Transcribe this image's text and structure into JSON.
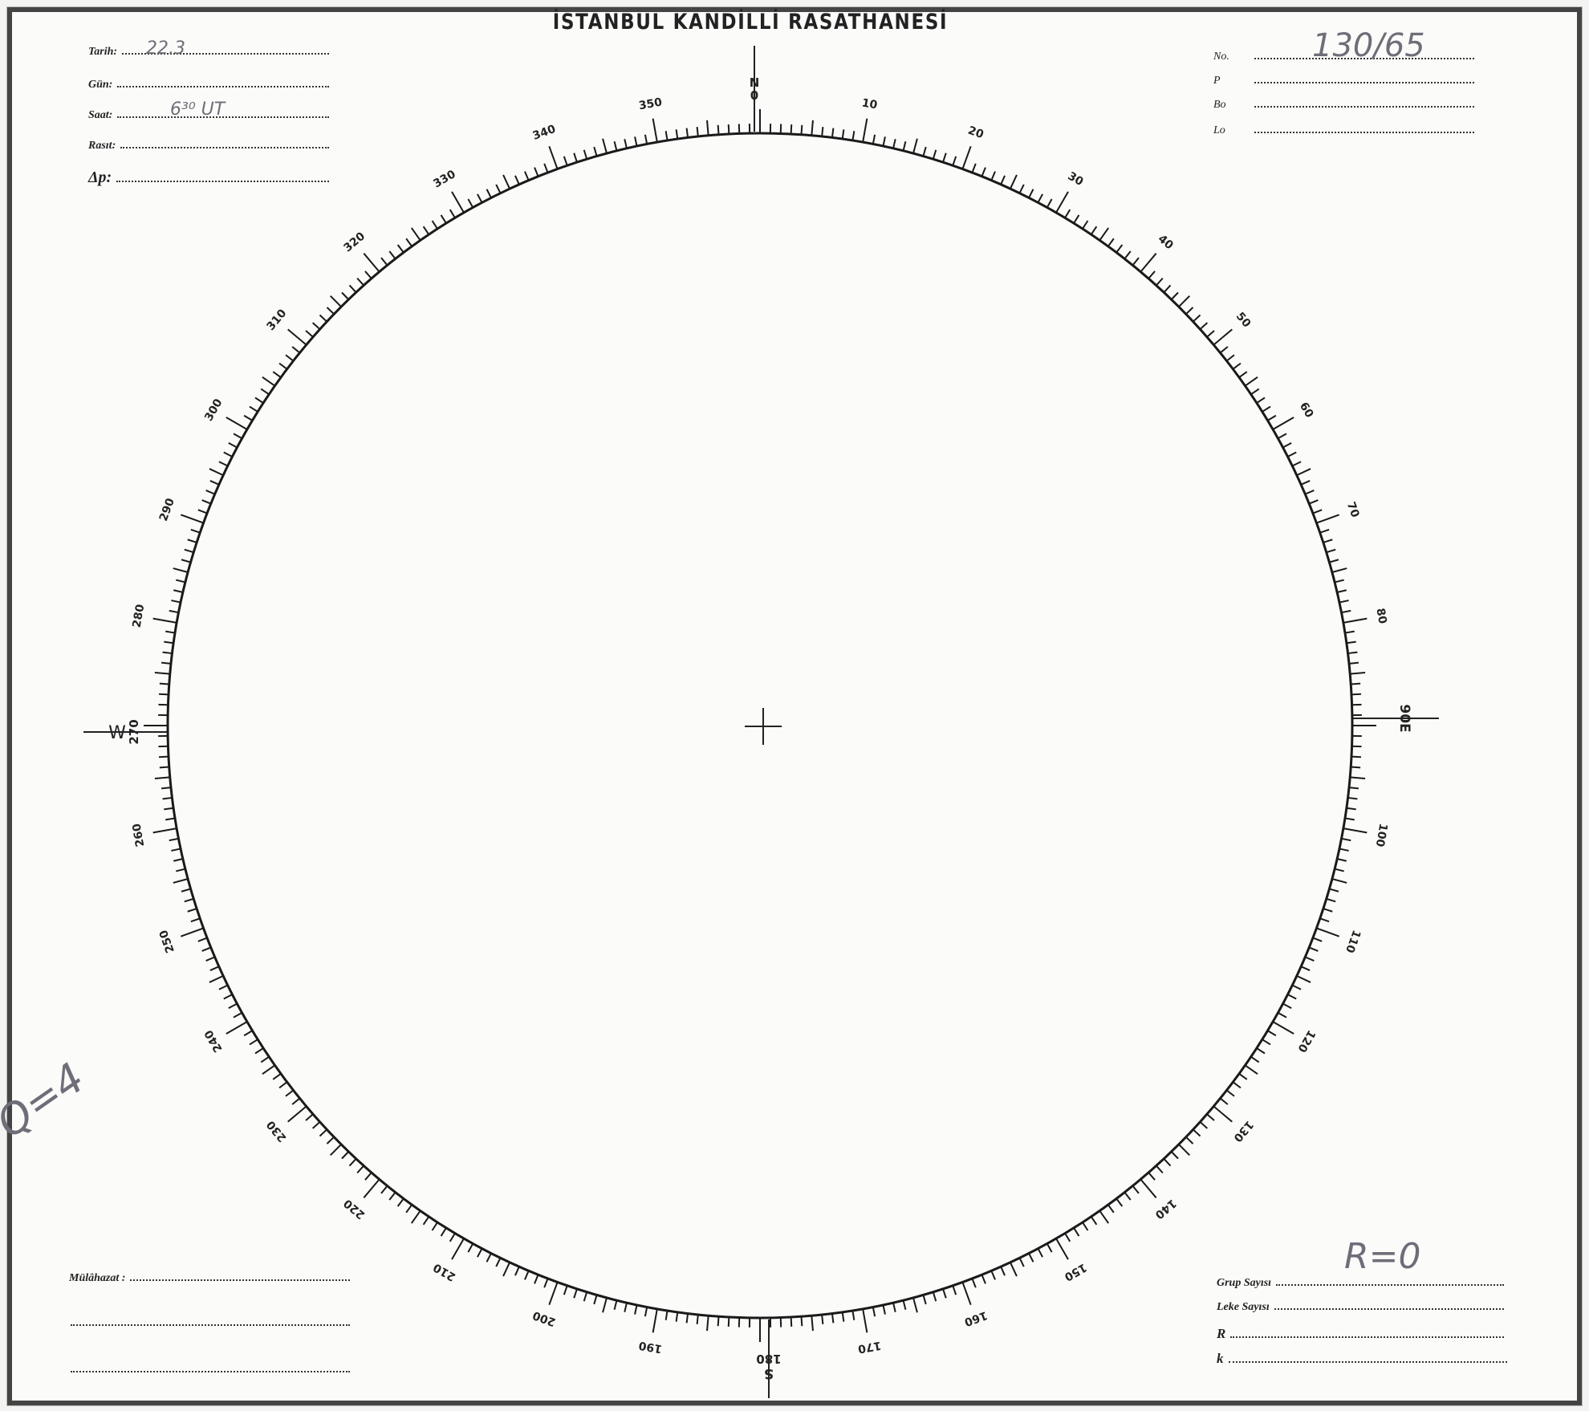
{
  "header": {
    "title": "İSTANBUL KANDİLLİ RASATHANESİ"
  },
  "left_fields": [
    {
      "label": "Tarih:",
      "value": "22.3"
    },
    {
      "label": "Gün:",
      "value": ""
    },
    {
      "label": "Saat:",
      "value": "6³⁰ UT"
    },
    {
      "label": "Rasıt:",
      "value": ""
    },
    {
      "label": "Δp:",
      "value": ""
    }
  ],
  "right_fields": [
    {
      "label": "No.",
      "value": "130/65"
    },
    {
      "label": "P",
      "value": ""
    },
    {
      "label": "Bo",
      "value": ""
    },
    {
      "label": "Lo",
      "value": ""
    }
  ],
  "remarks": {
    "label": "Mülâhazat :"
  },
  "bottom_fields": [
    {
      "label": "Grup Sayısı"
    },
    {
      "label": "Leke Sayısı"
    },
    {
      "label": "R"
    },
    {
      "label": "k"
    }
  ],
  "cardinals": {
    "north": "N",
    "north_zero": "0",
    "east": "90E",
    "south_deg": "180",
    "south": "S",
    "west": "W",
    "west_deg": "270"
  },
  "dial_labels": [
    "10",
    "20",
    "30",
    "40",
    "50",
    "60",
    "70",
    "80",
    "100",
    "110",
    "120",
    "130",
    "140",
    "150",
    "160",
    "170",
    "190",
    "200",
    "210",
    "220",
    "230",
    "240",
    "250",
    "260",
    "280",
    "290",
    "300",
    "310",
    "320",
    "330",
    "340",
    "350"
  ],
  "annotations": {
    "relative_number": "R=0",
    "quality": "Q=4"
  }
}
